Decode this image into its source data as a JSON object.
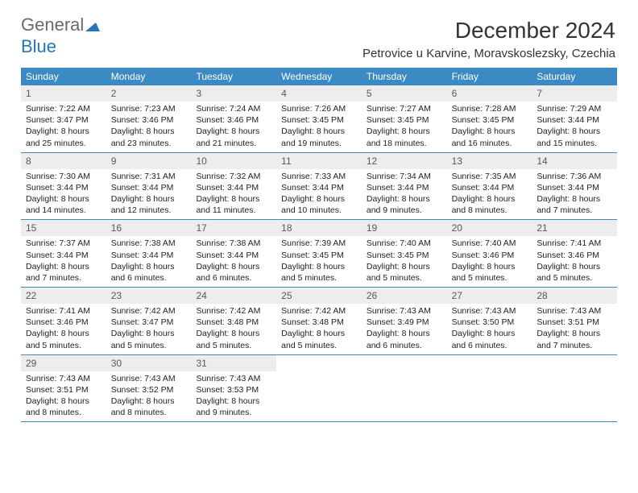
{
  "logo": {
    "part1": "General",
    "part2": "Blue"
  },
  "title": "December 2024",
  "subtitle": "Petrovice u Karvine, Moravskoslezsky, Czechia",
  "colors": {
    "header_bg": "#3b8ac4",
    "header_text": "#ffffff",
    "num_bg": "#ededed",
    "num_text": "#585858",
    "body_text": "#222222",
    "rule": "#3b8ac4",
    "logo_gray": "#6a6a6a",
    "logo_blue": "#2576b9"
  },
  "weekdays": [
    "Sunday",
    "Monday",
    "Tuesday",
    "Wednesday",
    "Thursday",
    "Friday",
    "Saturday"
  ],
  "weeks": [
    [
      {
        "n": "1",
        "sr": "Sunrise: 7:22 AM",
        "ss": "Sunset: 3:47 PM",
        "d1": "Daylight: 8 hours",
        "d2": "and 25 minutes."
      },
      {
        "n": "2",
        "sr": "Sunrise: 7:23 AM",
        "ss": "Sunset: 3:46 PM",
        "d1": "Daylight: 8 hours",
        "d2": "and 23 minutes."
      },
      {
        "n": "3",
        "sr": "Sunrise: 7:24 AM",
        "ss": "Sunset: 3:46 PM",
        "d1": "Daylight: 8 hours",
        "d2": "and 21 minutes."
      },
      {
        "n": "4",
        "sr": "Sunrise: 7:26 AM",
        "ss": "Sunset: 3:45 PM",
        "d1": "Daylight: 8 hours",
        "d2": "and 19 minutes."
      },
      {
        "n": "5",
        "sr": "Sunrise: 7:27 AM",
        "ss": "Sunset: 3:45 PM",
        "d1": "Daylight: 8 hours",
        "d2": "and 18 minutes."
      },
      {
        "n": "6",
        "sr": "Sunrise: 7:28 AM",
        "ss": "Sunset: 3:45 PM",
        "d1": "Daylight: 8 hours",
        "d2": "and 16 minutes."
      },
      {
        "n": "7",
        "sr": "Sunrise: 7:29 AM",
        "ss": "Sunset: 3:44 PM",
        "d1": "Daylight: 8 hours",
        "d2": "and 15 minutes."
      }
    ],
    [
      {
        "n": "8",
        "sr": "Sunrise: 7:30 AM",
        "ss": "Sunset: 3:44 PM",
        "d1": "Daylight: 8 hours",
        "d2": "and 14 minutes."
      },
      {
        "n": "9",
        "sr": "Sunrise: 7:31 AM",
        "ss": "Sunset: 3:44 PM",
        "d1": "Daylight: 8 hours",
        "d2": "and 12 minutes."
      },
      {
        "n": "10",
        "sr": "Sunrise: 7:32 AM",
        "ss": "Sunset: 3:44 PM",
        "d1": "Daylight: 8 hours",
        "d2": "and 11 minutes."
      },
      {
        "n": "11",
        "sr": "Sunrise: 7:33 AM",
        "ss": "Sunset: 3:44 PM",
        "d1": "Daylight: 8 hours",
        "d2": "and 10 minutes."
      },
      {
        "n": "12",
        "sr": "Sunrise: 7:34 AM",
        "ss": "Sunset: 3:44 PM",
        "d1": "Daylight: 8 hours",
        "d2": "and 9 minutes."
      },
      {
        "n": "13",
        "sr": "Sunrise: 7:35 AM",
        "ss": "Sunset: 3:44 PM",
        "d1": "Daylight: 8 hours",
        "d2": "and 8 minutes."
      },
      {
        "n": "14",
        "sr": "Sunrise: 7:36 AM",
        "ss": "Sunset: 3:44 PM",
        "d1": "Daylight: 8 hours",
        "d2": "and 7 minutes."
      }
    ],
    [
      {
        "n": "15",
        "sr": "Sunrise: 7:37 AM",
        "ss": "Sunset: 3:44 PM",
        "d1": "Daylight: 8 hours",
        "d2": "and 7 minutes."
      },
      {
        "n": "16",
        "sr": "Sunrise: 7:38 AM",
        "ss": "Sunset: 3:44 PM",
        "d1": "Daylight: 8 hours",
        "d2": "and 6 minutes."
      },
      {
        "n": "17",
        "sr": "Sunrise: 7:38 AM",
        "ss": "Sunset: 3:44 PM",
        "d1": "Daylight: 8 hours",
        "d2": "and 6 minutes."
      },
      {
        "n": "18",
        "sr": "Sunrise: 7:39 AM",
        "ss": "Sunset: 3:45 PM",
        "d1": "Daylight: 8 hours",
        "d2": "and 5 minutes."
      },
      {
        "n": "19",
        "sr": "Sunrise: 7:40 AM",
        "ss": "Sunset: 3:45 PM",
        "d1": "Daylight: 8 hours",
        "d2": "and 5 minutes."
      },
      {
        "n": "20",
        "sr": "Sunrise: 7:40 AM",
        "ss": "Sunset: 3:46 PM",
        "d1": "Daylight: 8 hours",
        "d2": "and 5 minutes."
      },
      {
        "n": "21",
        "sr": "Sunrise: 7:41 AM",
        "ss": "Sunset: 3:46 PM",
        "d1": "Daylight: 8 hours",
        "d2": "and 5 minutes."
      }
    ],
    [
      {
        "n": "22",
        "sr": "Sunrise: 7:41 AM",
        "ss": "Sunset: 3:46 PM",
        "d1": "Daylight: 8 hours",
        "d2": "and 5 minutes."
      },
      {
        "n": "23",
        "sr": "Sunrise: 7:42 AM",
        "ss": "Sunset: 3:47 PM",
        "d1": "Daylight: 8 hours",
        "d2": "and 5 minutes."
      },
      {
        "n": "24",
        "sr": "Sunrise: 7:42 AM",
        "ss": "Sunset: 3:48 PM",
        "d1": "Daylight: 8 hours",
        "d2": "and 5 minutes."
      },
      {
        "n": "25",
        "sr": "Sunrise: 7:42 AM",
        "ss": "Sunset: 3:48 PM",
        "d1": "Daylight: 8 hours",
        "d2": "and 5 minutes."
      },
      {
        "n": "26",
        "sr": "Sunrise: 7:43 AM",
        "ss": "Sunset: 3:49 PM",
        "d1": "Daylight: 8 hours",
        "d2": "and 6 minutes."
      },
      {
        "n": "27",
        "sr": "Sunrise: 7:43 AM",
        "ss": "Sunset: 3:50 PM",
        "d1": "Daylight: 8 hours",
        "d2": "and 6 minutes."
      },
      {
        "n": "28",
        "sr": "Sunrise: 7:43 AM",
        "ss": "Sunset: 3:51 PM",
        "d1": "Daylight: 8 hours",
        "d2": "and 7 minutes."
      }
    ],
    [
      {
        "n": "29",
        "sr": "Sunrise: 7:43 AM",
        "ss": "Sunset: 3:51 PM",
        "d1": "Daylight: 8 hours",
        "d2": "and 8 minutes."
      },
      {
        "n": "30",
        "sr": "Sunrise: 7:43 AM",
        "ss": "Sunset: 3:52 PM",
        "d1": "Daylight: 8 hours",
        "d2": "and 8 minutes."
      },
      {
        "n": "31",
        "sr": "Sunrise: 7:43 AM",
        "ss": "Sunset: 3:53 PM",
        "d1": "Daylight: 8 hours",
        "d2": "and 9 minutes."
      },
      {
        "empty": true
      },
      {
        "empty": true
      },
      {
        "empty": true
      },
      {
        "empty": true
      }
    ]
  ]
}
